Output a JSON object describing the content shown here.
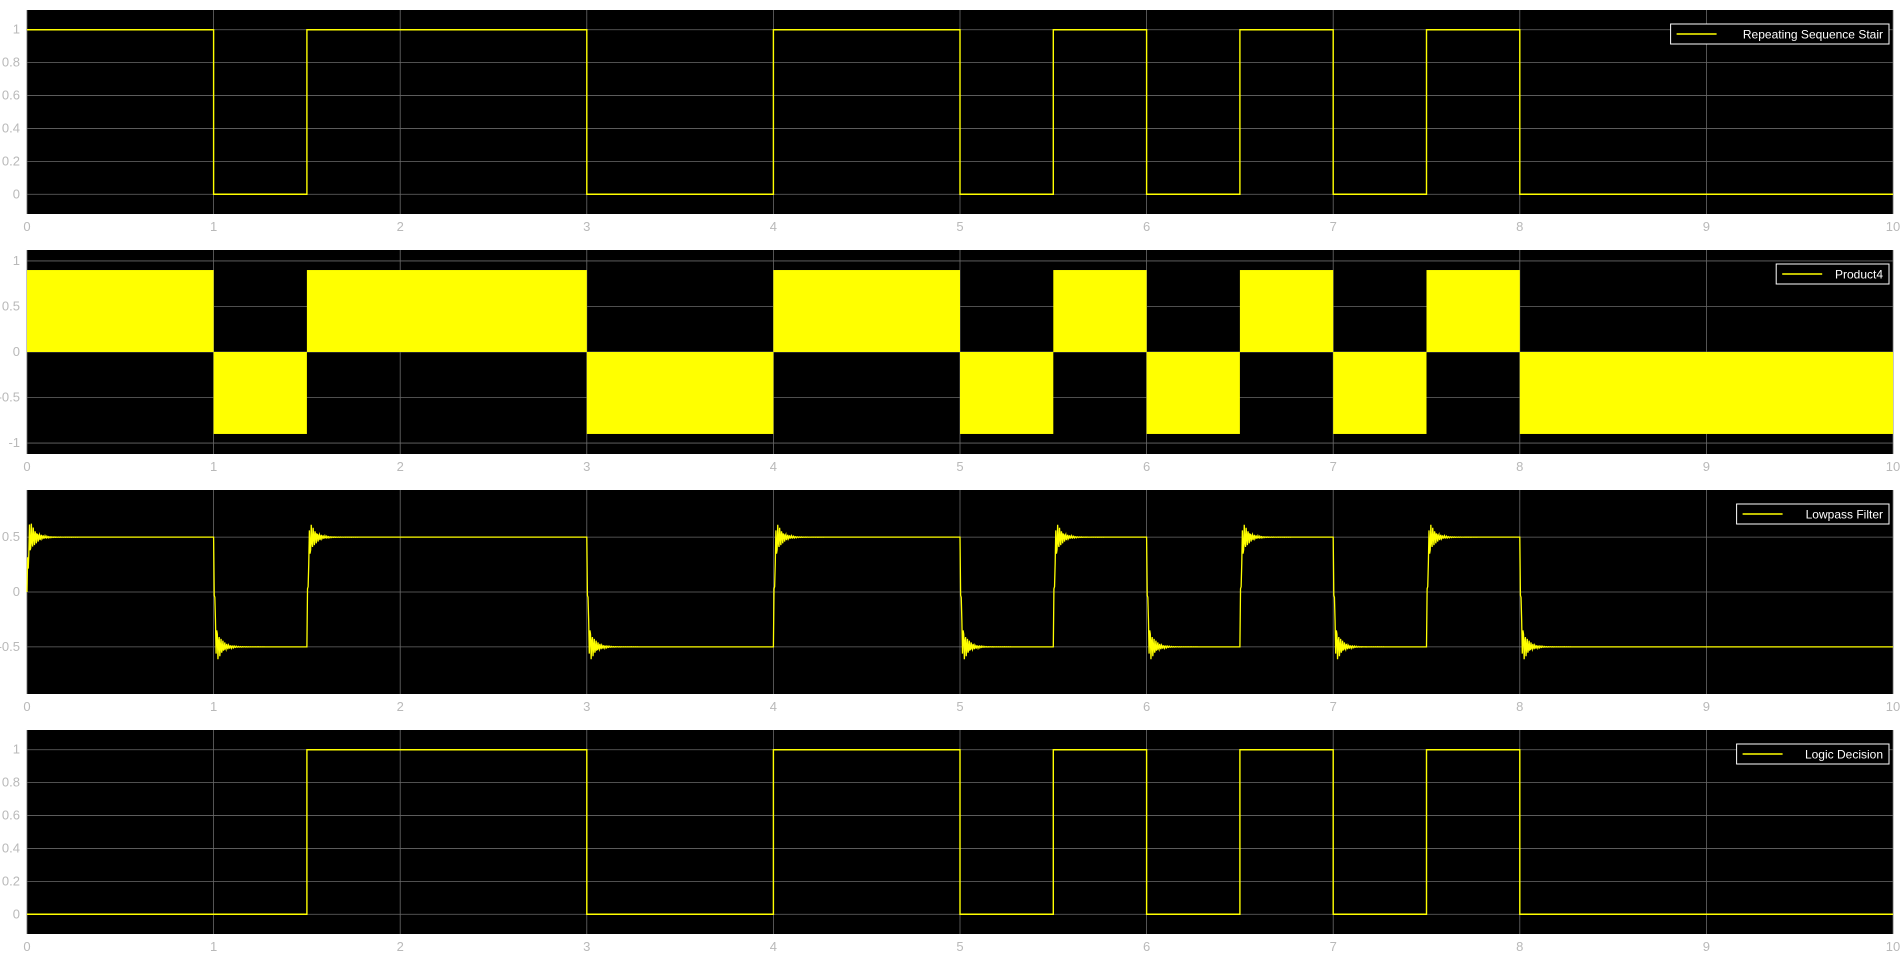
{
  "chart_data": [
    {
      "type": "line",
      "legend": "Repeating Sequence Stair",
      "legend_position": "top-right",
      "background": "#000000",
      "line_color": "#ffff00",
      "grid": true,
      "xlim": [
        0,
        10
      ],
      "ylim": [
        -0.12,
        1.12
      ],
      "xticks": [
        0,
        1,
        2,
        3,
        4,
        5,
        6,
        7,
        8,
        9,
        10
      ],
      "yticks": [
        0,
        0.2,
        0.4,
        0.6,
        0.8,
        1
      ],
      "ytick_labels": [
        "0",
        "0.2",
        "0.4",
        "0.6",
        "0.8",
        "1"
      ],
      "signal": "step",
      "x": [
        0,
        1,
        1.5,
        3,
        4,
        5,
        5.5,
        6,
        6.5,
        7,
        7.5,
        8,
        10
      ],
      "y": [
        1,
        0,
        1,
        0,
        1,
        0,
        1,
        0,
        1,
        0,
        1,
        0,
        0
      ]
    },
    {
      "type": "area",
      "legend": "Product4",
      "legend_position": "top-right",
      "background": "#000000",
      "line_color": "#ffff00",
      "grid": true,
      "xlim": [
        0,
        10
      ],
      "ylim": [
        -1.12,
        1.12
      ],
      "xticks": [
        0,
        1,
        2,
        3,
        4,
        5,
        6,
        7,
        8,
        9,
        10
      ],
      "yticks": [
        -1,
        -0.5,
        0,
        0.5,
        1
      ],
      "ytick_labels": [
        "-1",
        "-0.5",
        "0",
        "0.5",
        "1"
      ],
      "signal": "rectified-oscillation",
      "amplitude": 0.9,
      "x": [
        0,
        1,
        1.5,
        3,
        4,
        5,
        5.5,
        6,
        6.5,
        7,
        7.5,
        8,
        10
      ],
      "sign": [
        1,
        -1,
        1,
        -1,
        1,
        -1,
        1,
        -1,
        1,
        -1,
        1,
        -1,
        -1
      ]
    },
    {
      "type": "line",
      "legend": "Lowpass Filter",
      "legend_position": "top-right",
      "background": "#000000",
      "line_color": "#ffff00",
      "grid": true,
      "xlim": [
        0,
        10
      ],
      "ylim": [
        -0.93,
        0.93
      ],
      "xticks": [
        0,
        1,
        2,
        3,
        4,
        5,
        6,
        7,
        8,
        9,
        10
      ],
      "yticks": [
        -0.5,
        0,
        0.5
      ],
      "ytick_labels": [
        "-0.5",
        "0",
        "0.5"
      ],
      "signal": "filtered-step",
      "level": 0.5,
      "overshoot": 0.3,
      "x": [
        0,
        1,
        1.5,
        3,
        4,
        5,
        5.5,
        6,
        6.5,
        7,
        7.5,
        8,
        10
      ],
      "y": [
        0.5,
        -0.5,
        0.5,
        -0.5,
        0.5,
        -0.5,
        0.5,
        -0.5,
        0.5,
        -0.5,
        0.5,
        -0.5,
        -0.5
      ]
    },
    {
      "type": "line",
      "legend": "Logic Decision",
      "legend_position": "top-right",
      "background": "#000000",
      "line_color": "#ffff00",
      "grid": true,
      "xlim": [
        0,
        10
      ],
      "ylim": [
        -0.12,
        1.12
      ],
      "xticks": [
        0,
        1,
        2,
        3,
        4,
        5,
        6,
        7,
        8,
        9,
        10
      ],
      "yticks": [
        0,
        0.2,
        0.4,
        0.6,
        0.8,
        1
      ],
      "ytick_labels": [
        "0",
        "0.2",
        "0.4",
        "0.6",
        "0.8",
        "1"
      ],
      "signal": "step",
      "x": [
        0,
        1.5,
        3,
        4,
        5,
        5.5,
        6,
        6.5,
        7,
        7.5,
        8,
        10
      ],
      "y": [
        0,
        1,
        0,
        1,
        0,
        1,
        0,
        1,
        0,
        1,
        0,
        0
      ]
    }
  ]
}
